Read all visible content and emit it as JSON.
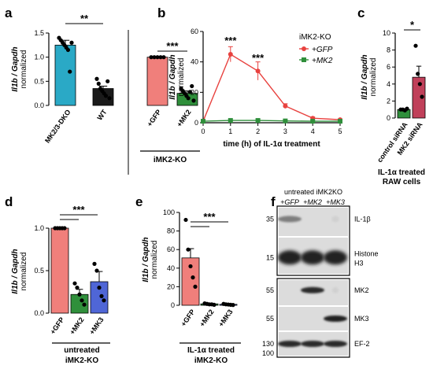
{
  "panels": {
    "a": "a",
    "b": "b",
    "c": "c",
    "d": "d",
    "e": "e",
    "f": "f"
  },
  "ylabel_main": "Il1b / Gapdh",
  "ylabel_sub": "normalized",
  "chart_data": [
    {
      "panel": "a",
      "type": "bar",
      "ylim": [
        0,
        1.5
      ],
      "yticks": [
        "0.0",
        "0.5",
        "1.0",
        "1.5"
      ],
      "ytick_values": [
        0.0,
        0.5,
        1.0,
        1.5
      ],
      "categories": [
        "MK2/3-DKO",
        "WT",
        "+GFP",
        "+MK2"
      ],
      "values": [
        1.25,
        0.35,
        1.0,
        0.25
      ],
      "errors": [
        0.1,
        0.05,
        0.01,
        0.05
      ],
      "colors": [
        "#2aa9c6",
        "#1a1a1a",
        "#f07f7b",
        "#2f8f3b"
      ],
      "points": [
        [
          1.4,
          1.35,
          1.3,
          1.25,
          1.2,
          1.15,
          0.7,
          1.3
        ],
        [
          0.55,
          0.45,
          0.35,
          0.3,
          0.25,
          0.2,
          0.5,
          0.15
        ],
        [
          1.0,
          1.0,
          1.0,
          1.0,
          1.0
        ],
        [
          0.35,
          0.3,
          0.25,
          0.2,
          0.15,
          0.28,
          0.4,
          0.1
        ]
      ],
      "sig": [
        "**",
        "***"
      ],
      "group_label": "iMK2-KO"
    },
    {
      "panel": "b",
      "type": "line",
      "xlabel": "time (h) of IL-1α treatment",
      "xlim": [
        0,
        5
      ],
      "ylim": [
        0,
        60
      ],
      "xticks": [
        "0",
        "1",
        "2",
        "3",
        "4",
        "5"
      ],
      "yticks": [
        "0",
        "20",
        "40",
        "60"
      ],
      "ytick_values": [
        0,
        20,
        40,
        60
      ],
      "legend_title": "iMK2-KO",
      "series": [
        {
          "name": "+GFP",
          "color": "#e8423f",
          "x": [
            0,
            1,
            2,
            3,
            4,
            5
          ],
          "y": [
            1,
            45,
            34,
            11,
            3,
            2
          ],
          "err": [
            0.5,
            5,
            6,
            1.5,
            0.8,
            0.5
          ]
        },
        {
          "name": "+MK2",
          "color": "#2f8f3b",
          "x": [
            0,
            1,
            2,
            3,
            4,
            5
          ],
          "y": [
            1,
            1.5,
            1.5,
            1.2,
            1,
            1
          ],
          "err": [
            0.3,
            0.3,
            0.3,
            0.3,
            0.3,
            0.3
          ]
        }
      ],
      "sig": [
        "***",
        "***"
      ],
      "legend_position": "top-right"
    },
    {
      "panel": "c",
      "type": "bar",
      "ylim": [
        0,
        10
      ],
      "yticks": [
        "0",
        "2",
        "4",
        "6",
        "8",
        "10"
      ],
      "ytick_values": [
        0,
        2,
        4,
        6,
        8,
        10
      ],
      "categories": [
        "control siRNA",
        "MK2 siRNA"
      ],
      "values": [
        1.0,
        4.8
      ],
      "errors": [
        0.1,
        1.3
      ],
      "colors": [
        "#2f8f3b",
        "#c0405a"
      ],
      "points": [
        [
          1.0,
          1.0,
          0.9,
          1.1
        ],
        [
          8.5,
          5.2,
          4.0,
          2.5
        ]
      ],
      "sig": [
        "*"
      ],
      "group_label": "IL-1α treated RAW cells"
    },
    {
      "panel": "d",
      "type": "bar",
      "ylim": [
        0,
        1.0
      ],
      "yticks": [
        "0.0",
        "0.5",
        "1.0"
      ],
      "ytick_values": [
        0.0,
        0.5,
        1.0
      ],
      "categories": [
        "+GFP",
        "+MK2",
        "+MK3"
      ],
      "values": [
        1.0,
        0.22,
        0.37
      ],
      "errors": [
        0.01,
        0.06,
        0.12
      ],
      "colors": [
        "#f07f7b",
        "#2f8f3b",
        "#4f66d6"
      ],
      "points": [
        [
          1.0,
          1.0,
          1.0,
          1.0,
          1.0
        ],
        [
          0.35,
          0.3,
          0.22,
          0.15,
          0.1
        ],
        [
          0.58,
          0.5,
          0.3,
          0.2,
          0.15
        ]
      ],
      "sig": [
        "***"
      ],
      "group_label": "untreated iMK2-KO"
    },
    {
      "panel": "e",
      "type": "bar",
      "ylim": [
        0,
        100
      ],
      "yticks": [
        "0",
        "20",
        "40",
        "60",
        "80",
        "100"
      ],
      "ytick_values": [
        0,
        20,
        40,
        60,
        80,
        100
      ],
      "categories": [
        "+GFP",
        "+MK2",
        "+MK3"
      ],
      "values": [
        51,
        1.5,
        1.0
      ],
      "errors": [
        10,
        0.5,
        0.3
      ],
      "colors": [
        "#f07f7b",
        "#2f8f3b",
        "#4f66d6"
      ],
      "points": [
        [
          92,
          60,
          42,
          30,
          20
        ],
        [
          2,
          1.5,
          1,
          1,
          0.5
        ],
        [
          1.5,
          1,
          0.8,
          0.5,
          0.3
        ]
      ],
      "sig": [
        "***"
      ],
      "group_label": "IL-1α treated iMK2-KO"
    }
  ],
  "blot": {
    "header": "untreated iMK2KO",
    "lanes": [
      "+GFP",
      "+MK2",
      "+MK3"
    ],
    "rows": [
      {
        "marker": "35",
        "label": "IL-1β"
      },
      {
        "marker": "15",
        "label": "Histone H3"
      },
      {
        "marker": "55",
        "label": "MK2"
      },
      {
        "marker": "55",
        "label": "MK3"
      },
      {
        "marker": "130",
        "label": "EF-2"
      }
    ],
    "extra_marker": "100"
  }
}
